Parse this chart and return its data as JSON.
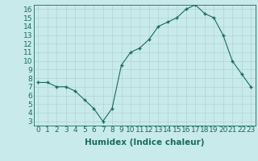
{
  "x": [
    0,
    1,
    2,
    3,
    4,
    5,
    6,
    7,
    8,
    9,
    10,
    11,
    12,
    13,
    14,
    15,
    16,
    17,
    18,
    19,
    20,
    21,
    22,
    23
  ],
  "y": [
    7.5,
    7.5,
    7.0,
    7.0,
    6.5,
    5.5,
    4.5,
    3.0,
    4.5,
    9.5,
    11.0,
    11.5,
    12.5,
    14.0,
    14.5,
    15.0,
    16.0,
    16.5,
    15.5,
    15.0,
    13.0,
    10.0,
    8.5,
    7.0
  ],
  "xlim": [
    -0.5,
    23.5
  ],
  "ylim": [
    2.5,
    16.5
  ],
  "yticks": [
    3,
    4,
    5,
    6,
    7,
    8,
    9,
    10,
    11,
    12,
    13,
    14,
    15,
    16
  ],
  "xticks": [
    0,
    1,
    2,
    3,
    4,
    5,
    6,
    7,
    8,
    9,
    10,
    11,
    12,
    13,
    14,
    15,
    16,
    17,
    18,
    19,
    20,
    21,
    22,
    23
  ],
  "xlabel": "Humidex (Indice chaleur)",
  "line_color": "#1a6b5a",
  "marker": "+",
  "bg_color": "#c8eaea",
  "grid_color": "#afd4d4",
  "tick_label_color": "#1a6b5a",
  "xlabel_color": "#1a6b5a",
  "font_size": 6.5,
  "xlabel_fontsize": 7.5
}
